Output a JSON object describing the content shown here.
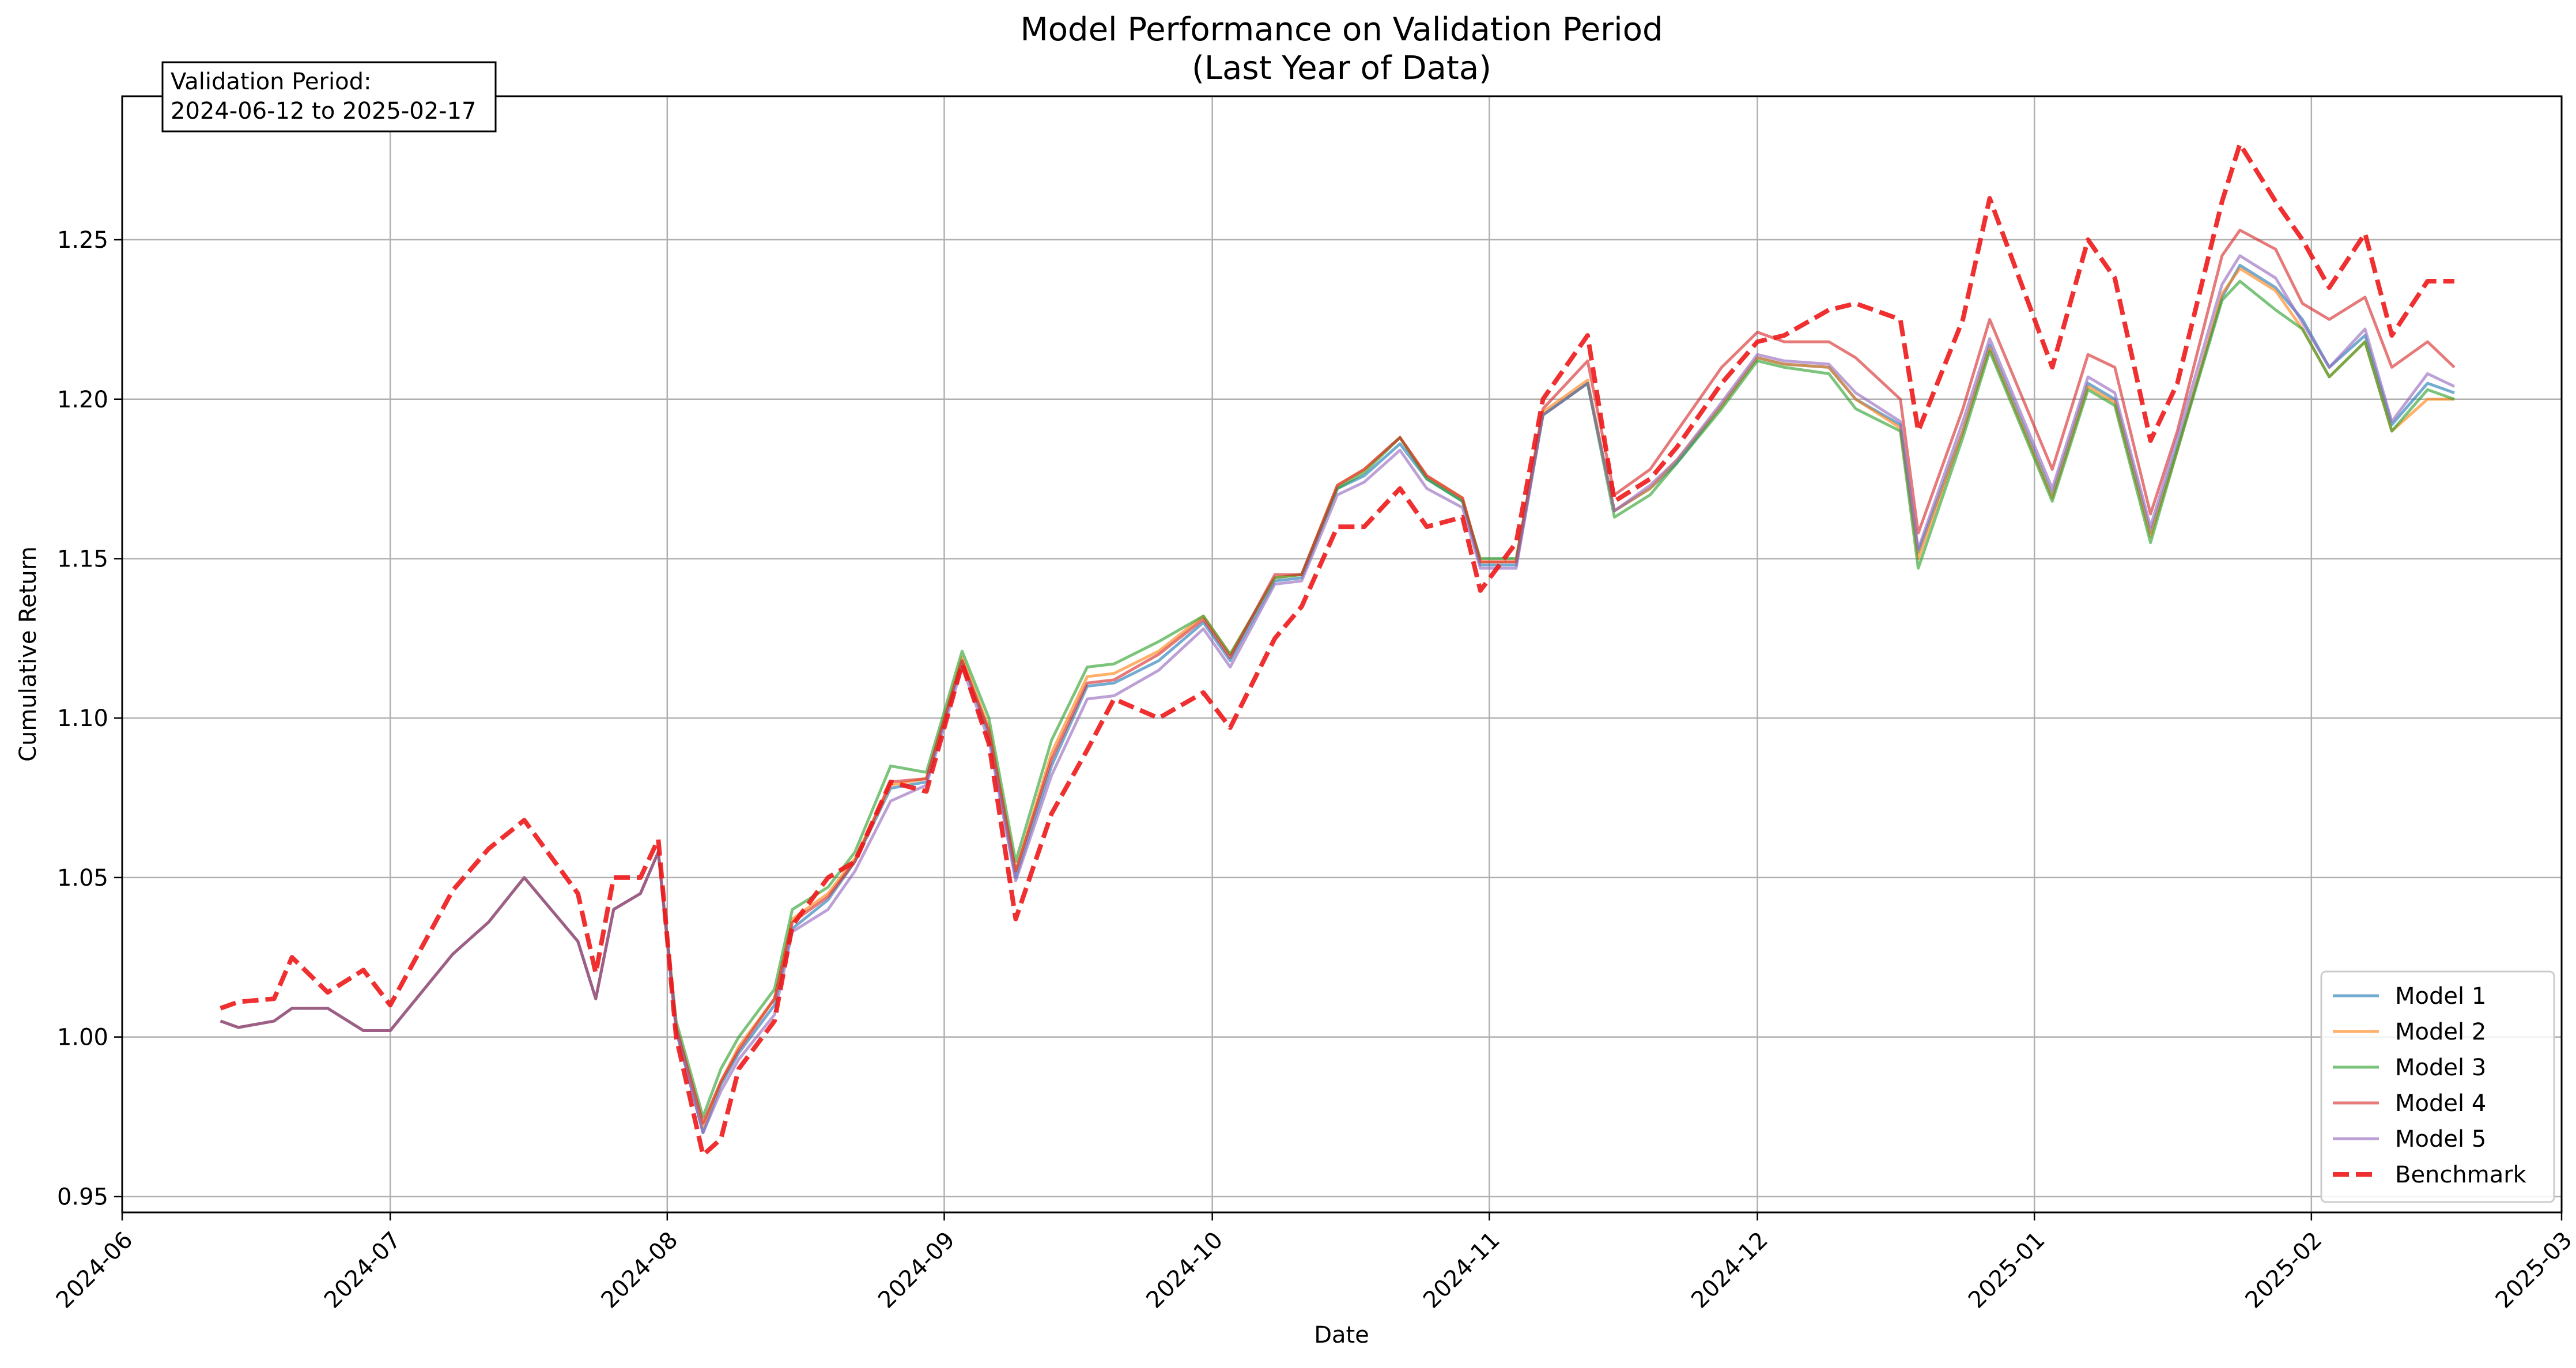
{
  "chart_data": {
    "type": "line",
    "title": "Model Performance on Validation Period",
    "subtitle": "(Last Year of Data)",
    "xlabel": "Date",
    "ylabel": "Cumulative Return",
    "annotation_line1": "Validation Period:",
    "annotation_line2": "2024-06-12 to 2025-02-17",
    "x_range": [
      "2024-06-01",
      "2025-03-01"
    ],
    "ylim": [
      0.945,
      1.295
    ],
    "x_ticks": [
      {
        "date": "2024-06-01",
        "label": "2024-06"
      },
      {
        "date": "2024-07-01",
        "label": "2024-07"
      },
      {
        "date": "2024-08-01",
        "label": "2024-08"
      },
      {
        "date": "2024-09-01",
        "label": "2024-09"
      },
      {
        "date": "2024-10-01",
        "label": "2024-10"
      },
      {
        "date": "2024-11-01",
        "label": "2024-11"
      },
      {
        "date": "2024-12-01",
        "label": "2024-12"
      },
      {
        "date": "2025-01-01",
        "label": "2025-01"
      },
      {
        "date": "2025-02-01",
        "label": "2025-02"
      },
      {
        "date": "2025-03-01",
        "label": "2025-03"
      }
    ],
    "y_ticks": [
      {
        "value": 0.95,
        "label": "0.95"
      },
      {
        "value": 1.0,
        "label": "1.00"
      },
      {
        "value": 1.05,
        "label": "1.05"
      },
      {
        "value": 1.1,
        "label": "1.10"
      },
      {
        "value": 1.15,
        "label": "1.15"
      },
      {
        "value": 1.2,
        "label": "1.20"
      },
      {
        "value": 1.25,
        "label": "1.25"
      }
    ],
    "grid": true,
    "legend_position": "bottom-right",
    "x": [
      "2024-06-12",
      "2024-06-14",
      "2024-06-18",
      "2024-06-20",
      "2024-06-24",
      "2024-06-28",
      "2024-07-01",
      "2024-07-08",
      "2024-07-12",
      "2024-07-16",
      "2024-07-22",
      "2024-07-24",
      "2024-07-26",
      "2024-07-29",
      "2024-07-31",
      "2024-08-02",
      "2024-08-05",
      "2024-08-07",
      "2024-08-09",
      "2024-08-13",
      "2024-08-15",
      "2024-08-19",
      "2024-08-22",
      "2024-08-26",
      "2024-08-30",
      "2024-09-03",
      "2024-09-06",
      "2024-09-09",
      "2024-09-13",
      "2024-09-17",
      "2024-09-20",
      "2024-09-25",
      "2024-09-30",
      "2024-10-03",
      "2024-10-08",
      "2024-10-11",
      "2024-10-15",
      "2024-10-18",
      "2024-10-22",
      "2024-10-25",
      "2024-10-29",
      "2024-10-31",
      "2024-11-04",
      "2024-11-07",
      "2024-11-12",
      "2024-11-15",
      "2024-11-19",
      "2024-11-22",
      "2024-11-27",
      "2024-12-01",
      "2024-12-04",
      "2024-12-09",
      "2024-12-12",
      "2024-12-17",
      "2024-12-19",
      "2024-12-24",
      "2024-12-27",
      "2025-01-03",
      "2025-01-07",
      "2025-01-10",
      "2025-01-14",
      "2025-01-17",
      "2025-01-22",
      "2025-01-24",
      "2025-01-28",
      "2025-01-31",
      "2025-02-03",
      "2025-02-07",
      "2025-02-10",
      "2025-02-14",
      "2025-02-17"
    ],
    "series": [
      {
        "name": "Model 1",
        "color": "#1f77b4",
        "style": "solid",
        "values": [
          1.005,
          1.003,
          1.005,
          1.009,
          1.009,
          1.002,
          1.002,
          1.026,
          1.036,
          1.05,
          1.03,
          1.012,
          1.04,
          1.045,
          1.058,
          1.002,
          0.97,
          0.985,
          0.995,
          1.01,
          1.034,
          1.043,
          1.055,
          1.078,
          1.08,
          1.118,
          1.095,
          1.05,
          1.085,
          1.11,
          1.111,
          1.118,
          1.13,
          1.118,
          1.143,
          1.144,
          1.172,
          1.176,
          1.186,
          1.175,
          1.168,
          1.148,
          1.148,
          1.195,
          1.205,
          1.165,
          1.172,
          1.18,
          1.198,
          1.213,
          1.211,
          1.21,
          1.2,
          1.192,
          1.152,
          1.19,
          1.217,
          1.17,
          1.205,
          1.2,
          1.158,
          1.185,
          1.232,
          1.242,
          1.235,
          1.225,
          1.21,
          1.22,
          1.192,
          1.205,
          1.202
        ]
      },
      {
        "name": "Model 2",
        "color": "#ff7f0e",
        "style": "solid",
        "values": [
          1.005,
          1.003,
          1.005,
          1.009,
          1.009,
          1.002,
          1.002,
          1.026,
          1.036,
          1.05,
          1.03,
          1.012,
          1.04,
          1.045,
          1.058,
          1.003,
          0.972,
          0.986,
          0.997,
          1.012,
          1.037,
          1.045,
          1.056,
          1.079,
          1.081,
          1.119,
          1.097,
          1.052,
          1.089,
          1.113,
          1.114,
          1.121,
          1.132,
          1.12,
          1.144,
          1.145,
          1.173,
          1.178,
          1.188,
          1.176,
          1.169,
          1.149,
          1.149,
          1.196,
          1.206,
          1.165,
          1.172,
          1.181,
          1.198,
          1.213,
          1.211,
          1.21,
          1.2,
          1.191,
          1.15,
          1.19,
          1.216,
          1.169,
          1.204,
          1.199,
          1.157,
          1.184,
          1.233,
          1.241,
          1.234,
          1.222,
          1.207,
          1.218,
          1.19,
          1.2,
          1.2
        ]
      },
      {
        "name": "Model 3",
        "color": "#2ca02c",
        "style": "solid",
        "values": [
          1.005,
          1.003,
          1.005,
          1.009,
          1.009,
          1.002,
          1.002,
          1.026,
          1.036,
          1.05,
          1.03,
          1.012,
          1.04,
          1.045,
          1.058,
          1.005,
          0.975,
          0.99,
          1.0,
          1.015,
          1.04,
          1.047,
          1.058,
          1.085,
          1.083,
          1.121,
          1.1,
          1.055,
          1.093,
          1.116,
          1.117,
          1.124,
          1.132,
          1.12,
          1.144,
          1.145,
          1.172,
          1.177,
          1.188,
          1.175,
          1.168,
          1.15,
          1.15,
          1.195,
          1.205,
          1.163,
          1.17,
          1.18,
          1.197,
          1.212,
          1.21,
          1.208,
          1.197,
          1.19,
          1.147,
          1.188,
          1.215,
          1.168,
          1.203,
          1.198,
          1.155,
          1.184,
          1.231,
          1.237,
          1.228,
          1.222,
          1.207,
          1.218,
          1.19,
          1.203,
          1.2
        ]
      },
      {
        "name": "Model 4",
        "color": "#d62728",
        "style": "solid",
        "values": [
          1.005,
          1.003,
          1.005,
          1.009,
          1.009,
          1.002,
          1.002,
          1.026,
          1.036,
          1.05,
          1.03,
          1.012,
          1.04,
          1.045,
          1.058,
          1.003,
          0.973,
          0.986,
          0.996,
          1.012,
          1.036,
          1.044,
          1.055,
          1.08,
          1.081,
          1.118,
          1.096,
          1.052,
          1.087,
          1.111,
          1.112,
          1.12,
          1.131,
          1.119,
          1.145,
          1.145,
          1.173,
          1.178,
          1.188,
          1.176,
          1.169,
          1.149,
          1.149,
          1.197,
          1.212,
          1.17,
          1.178,
          1.19,
          1.21,
          1.221,
          1.218,
          1.218,
          1.213,
          1.2,
          1.158,
          1.197,
          1.225,
          1.178,
          1.214,
          1.21,
          1.164,
          1.19,
          1.245,
          1.253,
          1.247,
          1.23,
          1.225,
          1.232,
          1.21,
          1.218,
          1.21
        ]
      },
      {
        "name": "Model 5",
        "color": "#9467bd",
        "style": "solid",
        "values": [
          1.005,
          1.003,
          1.005,
          1.009,
          1.009,
          1.002,
          1.002,
          1.026,
          1.036,
          1.05,
          1.03,
          1.012,
          1.04,
          1.045,
          1.058,
          1.002,
          0.97,
          0.983,
          0.993,
          1.007,
          1.033,
          1.04,
          1.052,
          1.074,
          1.079,
          1.116,
          1.093,
          1.049,
          1.082,
          1.106,
          1.107,
          1.115,
          1.128,
          1.116,
          1.142,
          1.143,
          1.17,
          1.174,
          1.184,
          1.172,
          1.166,
          1.147,
          1.147,
          1.195,
          1.205,
          1.165,
          1.173,
          1.181,
          1.199,
          1.214,
          1.212,
          1.211,
          1.202,
          1.193,
          1.153,
          1.193,
          1.219,
          1.172,
          1.207,
          1.202,
          1.16,
          1.188,
          1.236,
          1.245,
          1.238,
          1.224,
          1.21,
          1.222,
          1.193,
          1.208,
          1.204
        ]
      },
      {
        "name": "Benchmark",
        "color": "#ee1a1a",
        "style": "dashed",
        "values": [
          1.009,
          1.011,
          1.012,
          1.025,
          1.014,
          1.021,
          1.01,
          1.046,
          1.059,
          1.068,
          1.045,
          1.02,
          1.05,
          1.05,
          1.062,
          1.0,
          0.963,
          0.968,
          0.99,
          1.005,
          1.035,
          1.05,
          1.055,
          1.08,
          1.077,
          1.117,
          1.092,
          1.037,
          1.07,
          1.09,
          1.106,
          1.1,
          1.108,
          1.097,
          1.125,
          1.135,
          1.16,
          1.16,
          1.172,
          1.16,
          1.163,
          1.14,
          1.155,
          1.2,
          1.22,
          1.168,
          1.175,
          1.185,
          1.205,
          1.218,
          1.22,
          1.228,
          1.23,
          1.225,
          1.19,
          1.225,
          1.263,
          1.21,
          1.25,
          1.238,
          1.187,
          1.205,
          1.262,
          1.28,
          1.262,
          1.25,
          1.235,
          1.252,
          1.22,
          1.237,
          1.237
        ]
      }
    ]
  }
}
